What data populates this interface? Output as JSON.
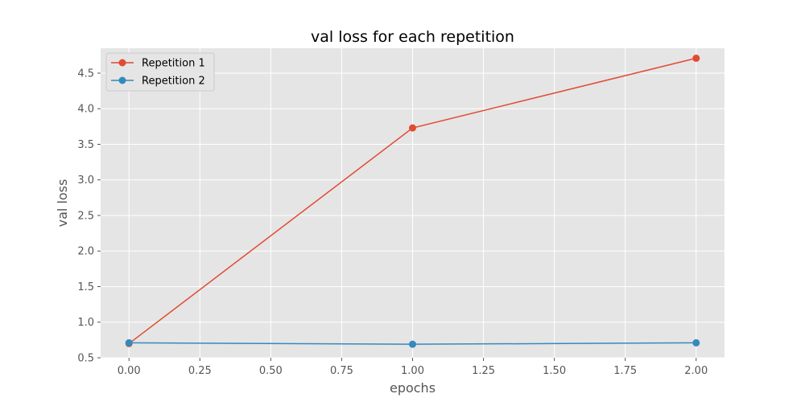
{
  "chart_data": {
    "type": "line",
    "title": "val loss for each repetition",
    "xlabel": "epochs",
    "ylabel": "val loss",
    "xlim": [
      -0.1,
      2.1
    ],
    "ylim": [
      0.5,
      4.85
    ],
    "xticks": [
      0.0,
      0.25,
      0.5,
      0.75,
      1.0,
      1.25,
      1.5,
      1.75,
      2.0
    ],
    "xtick_labels": [
      "0.00",
      "0.25",
      "0.50",
      "0.75",
      "1.00",
      "1.25",
      "1.50",
      "1.75",
      "2.00"
    ],
    "yticks": [
      0.5,
      1.0,
      1.5,
      2.0,
      2.5,
      3.0,
      3.5,
      4.0,
      4.5
    ],
    "ytick_labels": [
      "0.5",
      "1.0",
      "1.5",
      "2.0",
      "2.5",
      "3.0",
      "3.5",
      "4.0",
      "4.5"
    ],
    "grid": true,
    "legend_position": "top-left",
    "series": [
      {
        "name": "Repetition 1",
        "color": "#E24A33",
        "x": [
          0,
          1,
          2
        ],
        "y": [
          0.7,
          3.73,
          4.71
        ]
      },
      {
        "name": "Repetition 2",
        "color": "#348ABD",
        "x": [
          0,
          1,
          2
        ],
        "y": [
          0.71,
          0.69,
          0.71
        ]
      }
    ]
  }
}
